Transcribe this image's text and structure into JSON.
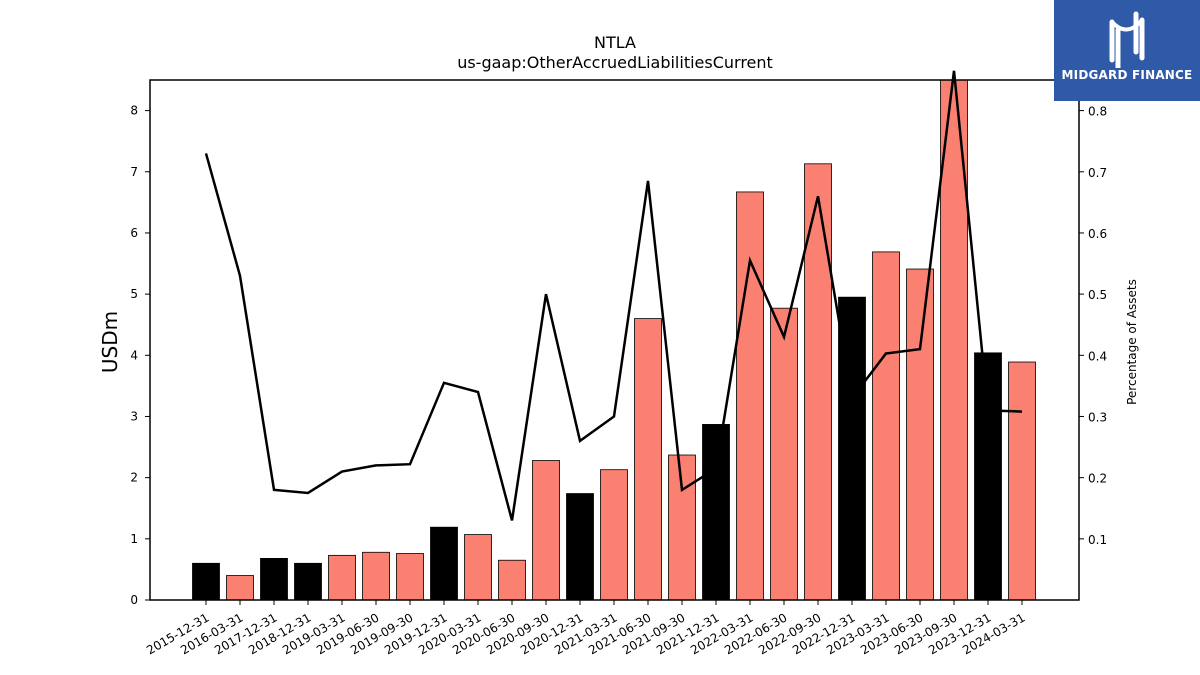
{
  "chart_data": {
    "type": "bar",
    "title": "NTLA",
    "subtitle": "us-gaap:OtherAccruedLiabilitiesCurrent",
    "ylabel": "USDm",
    "y2label": "Percentage of Assets",
    "ylim": [
      0,
      8.5
    ],
    "y2lim": [
      0.0,
      0.85
    ],
    "yticks": [
      0,
      1,
      2,
      3,
      4,
      5,
      6,
      7,
      8
    ],
    "y2ticks": [
      0.1,
      0.2,
      0.3,
      0.4,
      0.5,
      0.6,
      0.7,
      0.8
    ],
    "categories": [
      "2015-12-31",
      "2016-03-31",
      "2017-12-31",
      "2018-12-31",
      "2019-03-31",
      "2019-06-30",
      "2019-09-30",
      "2019-12-31",
      "2020-03-31",
      "2020-06-30",
      "2020-09-30",
      "2020-12-31",
      "2021-03-31",
      "2021-06-30",
      "2021-09-30",
      "2021-12-31",
      "2022-03-31",
      "2022-06-30",
      "2022-09-30",
      "2022-12-31",
      "2023-03-31",
      "2023-06-30",
      "2023-09-30",
      "2023-12-31",
      "2024-03-31"
    ],
    "series": [
      {
        "type": "bar",
        "values": [
          0.6,
          0.4,
          0.68,
          0.6,
          0.73,
          0.78,
          0.76,
          1.19,
          1.07,
          0.65,
          2.28,
          1.74,
          2.13,
          4.6,
          2.37,
          2.87,
          6.67,
          4.77,
          7.13,
          4.95,
          5.69,
          5.41,
          8.5,
          4.04,
          3.89
        ],
        "colors": [
          "#000000",
          "#fa8072",
          "#000000",
          "#000000",
          "#fa8072",
          "#fa8072",
          "#fa8072",
          "#000000",
          "#fa8072",
          "#fa8072",
          "#fa8072",
          "#000000",
          "#fa8072",
          "#fa8072",
          "#fa8072",
          "#000000",
          "#fa8072",
          "#fa8072",
          "#fa8072",
          "#000000",
          "#fa8072",
          "#fa8072",
          "#fa8072",
          "#000000",
          "#fa8072"
        ]
      },
      {
        "type": "line",
        "axis": "right",
        "color": "#000000",
        "values": [
          0.73,
          0.53,
          0.18,
          0.175,
          0.21,
          0.22,
          0.222,
          0.355,
          0.34,
          0.13,
          0.5,
          0.26,
          0.3,
          0.685,
          0.18,
          0.215,
          0.555,
          0.43,
          0.66,
          0.33,
          0.403,
          0.41,
          0.865,
          0.31,
          0.308
        ]
      }
    ],
    "grid": false,
    "legend": "none"
  },
  "logo": {
    "text": "MIDGARD FINANCE",
    "icon": "midgard-logo-icon",
    "bg": "#2f5aa8"
  }
}
